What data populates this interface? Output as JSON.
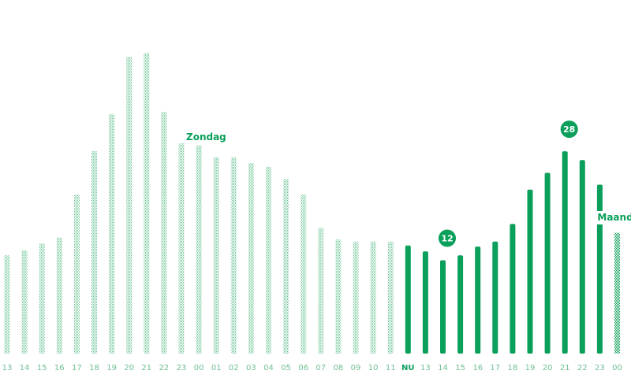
{
  "colors": {
    "primary": "#0a9f5a",
    "past": "#8fd0ac",
    "background": "#ffffff"
  },
  "chart_data": {
    "type": "bar",
    "title": "",
    "xlabel": "",
    "ylabel": "",
    "ylim": [
      0,
      36
    ],
    "grid": false,
    "categories": [
      "13",
      "14",
      "15",
      "16",
      "17",
      "18",
      "19",
      "20",
      "21",
      "22",
      "23",
      "00",
      "01",
      "02",
      "03",
      "04",
      "05",
      "06",
      "07",
      "08",
      "09",
      "10",
      "11",
      "NU",
      "13",
      "14",
      "15",
      "16",
      "17",
      "18",
      "19",
      "20",
      "21",
      "22",
      "23",
      "00"
    ],
    "values": [
      10,
      10.5,
      11.2,
      11.8,
      16.2,
      20.6,
      24.4,
      30.2,
      30.6,
      24.6,
      21.4,
      21.2,
      20.0,
      20.0,
      19.4,
      19.0,
      17.8,
      16.2,
      12.8,
      11.6,
      11.4,
      11.4,
      11.4,
      11.0,
      10.4,
      9.5,
      10.0,
      10.9,
      11.4,
      13.2,
      16.7,
      18.4,
      20.6,
      19.7,
      17.2,
      12.3
    ],
    "series": [
      {
        "name": "past",
        "start_index": 0,
        "end_index": 22,
        "style": "dotted"
      },
      {
        "name": "forecast",
        "start_index": 23,
        "end_index": 34,
        "style": "solid"
      },
      {
        "name": "next-day",
        "start_index": 35,
        "end_index": 35,
        "style": "dotted-dark"
      }
    ],
    "day_labels": [
      {
        "text": "Zondag",
        "anchor_index": 10
      },
      {
        "text": "Maandag",
        "anchor_index": 34
      }
    ],
    "badges": [
      {
        "text": "12",
        "anchor_index": 25
      },
      {
        "text": "28",
        "anchor_index": 32
      }
    ],
    "now_label": "NU"
  }
}
